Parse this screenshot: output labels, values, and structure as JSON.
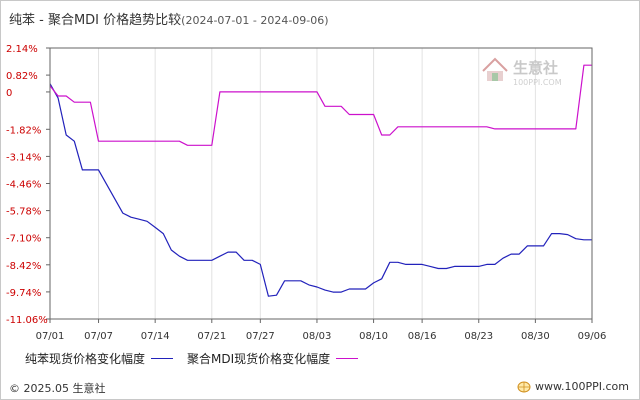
{
  "header": {
    "title": "纯苯 - 聚合MDI 价格趋势比较",
    "date_range": "(2024-07-01 - 2024-09-06)"
  },
  "watermark": {
    "name": "生意社",
    "url": "100PPI.COM"
  },
  "footer": {
    "copyright": "© 2025.05 生意社",
    "site": "www.100PPI.com"
  },
  "chart_data": {
    "type": "line",
    "title": "纯苯 - 聚合MDI 价格趋势比较",
    "xlabel": "",
    "ylabel": "",
    "unit": "%",
    "y_ticks": [
      "2.14%",
      "0.82%",
      "0",
      "-1.82%",
      "-3.14%",
      "-4.46%",
      "-5.78%",
      "-7.10%",
      "-8.42%",
      "-9.74%",
      "-11.06%"
    ],
    "x_ticks": [
      "07/01",
      "07/07",
      "07/14",
      "07/21",
      "07/27",
      "08/03",
      "08/10",
      "08/16",
      "08/23",
      "08/30",
      "09/06"
    ],
    "ylim": [
      -11.06,
      2.14
    ],
    "grid": "vertical",
    "legend_position": "bottom",
    "series": [
      {
        "name": "纯苯现货价格变化幅度",
        "color": "#2222bb",
        "points": [
          [
            "07/01",
            0.4
          ],
          [
            "07/02",
            -0.3
          ],
          [
            "07/03",
            -2.1
          ],
          [
            "07/04",
            -2.4
          ],
          [
            "07/05",
            -3.8
          ],
          [
            "07/06",
            -3.8
          ],
          [
            "07/07",
            -3.8
          ],
          [
            "07/08",
            -4.5
          ],
          [
            "07/09",
            -5.2
          ],
          [
            "07/10",
            -5.9
          ],
          [
            "07/11",
            -6.1
          ],
          [
            "07/12",
            -6.2
          ],
          [
            "07/13",
            -6.3
          ],
          [
            "07/14",
            -6.6
          ],
          [
            "07/15",
            -6.9
          ],
          [
            "07/16",
            -7.7
          ],
          [
            "07/17",
            -8.0
          ],
          [
            "07/18",
            -8.2
          ],
          [
            "07/19",
            -8.2
          ],
          [
            "07/20",
            -8.2
          ],
          [
            "07/21",
            -8.2
          ],
          [
            "07/22",
            -8.0
          ],
          [
            "07/23",
            -7.8
          ],
          [
            "07/24",
            -7.8
          ],
          [
            "07/25",
            -8.2
          ],
          [
            "07/26",
            -8.2
          ],
          [
            "07/27",
            -8.4
          ],
          [
            "07/28",
            -9.95
          ],
          [
            "07/29",
            -9.9
          ],
          [
            "07/30",
            -9.2
          ],
          [
            "07/31",
            -9.2
          ],
          [
            "08/01",
            -9.2
          ],
          [
            "08/02",
            -9.4
          ],
          [
            "08/03",
            -9.5
          ],
          [
            "08/04",
            -9.65
          ],
          [
            "08/05",
            -9.75
          ],
          [
            "08/06",
            -9.75
          ],
          [
            "08/07",
            -9.6
          ],
          [
            "08/08",
            -9.6
          ],
          [
            "08/09",
            -9.6
          ],
          [
            "08/10",
            -9.3
          ],
          [
            "08/11",
            -9.1
          ],
          [
            "08/12",
            -8.3
          ],
          [
            "08/13",
            -8.3
          ],
          [
            "08/14",
            -8.4
          ],
          [
            "08/15",
            -8.4
          ],
          [
            "08/16",
            -8.4
          ],
          [
            "08/17",
            -8.5
          ],
          [
            "08/18",
            -8.6
          ],
          [
            "08/19",
            -8.6
          ],
          [
            "08/20",
            -8.5
          ],
          [
            "08/21",
            -8.5
          ],
          [
            "08/22",
            -8.5
          ],
          [
            "08/23",
            -8.5
          ],
          [
            "08/24",
            -8.4
          ],
          [
            "08/25",
            -8.4
          ],
          [
            "08/26",
            -8.1
          ],
          [
            "08/27",
            -7.9
          ],
          [
            "08/28",
            -7.9
          ],
          [
            "08/29",
            -7.5
          ],
          [
            "08/30",
            -7.5
          ],
          [
            "08/31",
            -7.5
          ],
          [
            "09/01",
            -6.9
          ],
          [
            "09/02",
            -6.9
          ],
          [
            "09/03",
            -6.95
          ],
          [
            "09/04",
            -7.15
          ],
          [
            "09/05",
            -7.2
          ],
          [
            "09/06",
            -7.2
          ]
        ]
      },
      {
        "name": "聚合MDI现货价格变化幅度",
        "color": "#cc11cc",
        "points": [
          [
            "07/01",
            0.3
          ],
          [
            "07/02",
            -0.2
          ],
          [
            "07/03",
            -0.2
          ],
          [
            "07/04",
            -0.5
          ],
          [
            "07/05",
            -0.5
          ],
          [
            "07/06",
            -0.5
          ],
          [
            "07/07",
            -2.4
          ],
          [
            "07/08",
            -2.4
          ],
          [
            "07/09",
            -2.4
          ],
          [
            "07/10",
            -2.4
          ],
          [
            "07/11",
            -2.4
          ],
          [
            "07/12",
            -2.4
          ],
          [
            "07/13",
            -2.4
          ],
          [
            "07/14",
            -2.4
          ],
          [
            "07/15",
            -2.4
          ],
          [
            "07/16",
            -2.4
          ],
          [
            "07/17",
            -2.4
          ],
          [
            "07/18",
            -2.6
          ],
          [
            "07/19",
            -2.6
          ],
          [
            "07/20",
            -2.6
          ],
          [
            "07/21",
            -2.6
          ],
          [
            "07/22",
            0.0
          ],
          [
            "07/23",
            0.0
          ],
          [
            "07/24",
            0.0
          ],
          [
            "07/25",
            0.0
          ],
          [
            "07/26",
            0.0
          ],
          [
            "07/27",
            0.0
          ],
          [
            "07/28",
            0.0
          ],
          [
            "07/29",
            0.0
          ],
          [
            "07/30",
            0.0
          ],
          [
            "07/31",
            0.0
          ],
          [
            "08/01",
            0.0
          ],
          [
            "08/02",
            0.0
          ],
          [
            "08/03",
            0.0
          ],
          [
            "08/04",
            -0.7
          ],
          [
            "08/05",
            -0.7
          ],
          [
            "08/06",
            -0.7
          ],
          [
            "08/07",
            -1.1
          ],
          [
            "08/08",
            -1.1
          ],
          [
            "08/09",
            -1.1
          ],
          [
            "08/10",
            -1.1
          ],
          [
            "08/11",
            -2.1
          ],
          [
            "08/12",
            -2.1
          ],
          [
            "08/13",
            -1.7
          ],
          [
            "08/14",
            -1.7
          ],
          [
            "08/15",
            -1.7
          ],
          [
            "08/16",
            -1.7
          ],
          [
            "08/17",
            -1.7
          ],
          [
            "08/18",
            -1.7
          ],
          [
            "08/19",
            -1.7
          ],
          [
            "08/20",
            -1.7
          ],
          [
            "08/21",
            -1.7
          ],
          [
            "08/22",
            -1.7
          ],
          [
            "08/23",
            -1.7
          ],
          [
            "08/24",
            -1.7
          ],
          [
            "08/25",
            -1.8
          ],
          [
            "08/26",
            -1.8
          ],
          [
            "08/27",
            -1.8
          ],
          [
            "08/28",
            -1.8
          ],
          [
            "08/29",
            -1.8
          ],
          [
            "08/30",
            -1.8
          ],
          [
            "08/31",
            -1.8
          ],
          [
            "09/01",
            -1.8
          ],
          [
            "09/02",
            -1.8
          ],
          [
            "09/03",
            -1.8
          ],
          [
            "09/04",
            -1.8
          ],
          [
            "09/05",
            1.3
          ],
          [
            "09/06",
            1.3
          ]
        ]
      }
    ]
  }
}
